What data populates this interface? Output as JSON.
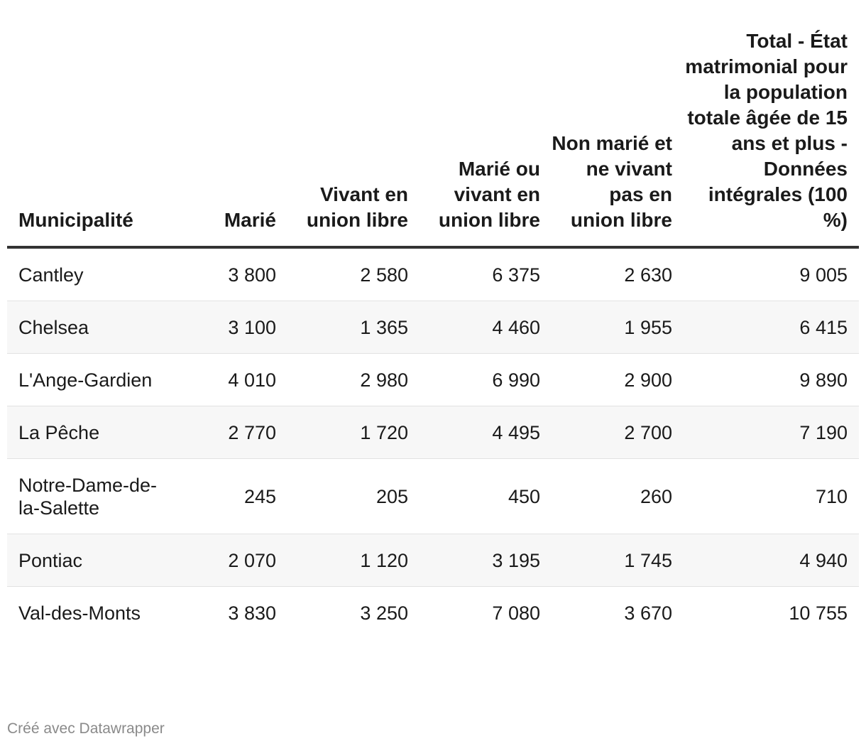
{
  "chart_data": {
    "type": "table",
    "columns": [
      "Municipalité",
      "Marié",
      "Vivant en union libre",
      "Marié ou vivant en union libre",
      "Non marié et ne vivant pas en union libre",
      "Total - État matrimonial pour la population totale âgée de 15 ans et plus - Données intégrales (100 %)"
    ],
    "rows": [
      [
        "Cantley",
        "3 800",
        "2 580",
        "6 375",
        "2 630",
        "9 005"
      ],
      [
        "Chelsea",
        "3 100",
        "1 365",
        "4 460",
        "1 955",
        "6 415"
      ],
      [
        "L'Ange-Gardien",
        "4 010",
        "2 980",
        "6 990",
        "2 900",
        "9 890"
      ],
      [
        "La Pêche",
        "2 770",
        "1 720",
        "4 495",
        "2 700",
        "7 190"
      ],
      [
        "Notre-Dame-de-la-Salette",
        "245",
        "205",
        "450",
        "260",
        "710"
      ],
      [
        "Pontiac",
        "2 070",
        "1 120",
        "3 195",
        "1 745",
        "4 940"
      ],
      [
        "Val-des-Monts",
        "3 830",
        "3 250",
        "7 080",
        "3 670",
        "10 755"
      ]
    ]
  },
  "footer": {
    "credit": "Créé avec Datawrapper"
  },
  "colors": {
    "header_rule": "#333333",
    "row_divider": "#e2e2e2",
    "alt_row_bg": "#f7f7f7",
    "footer_text": "#8a8a8a"
  }
}
